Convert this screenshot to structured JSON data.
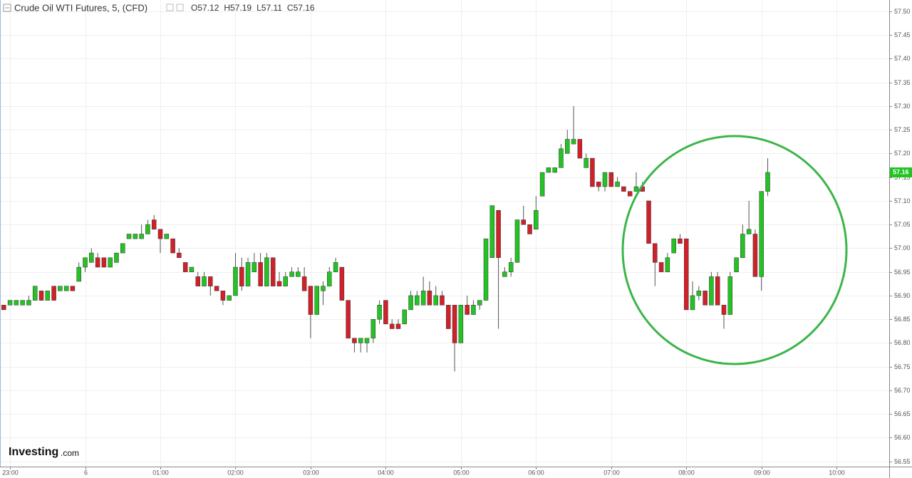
{
  "chart_data": {
    "type": "candlestick",
    "title": "Crude Oil WTI Futures, 5, (CFD)",
    "ohlc_header": [
      {
        "label": "O",
        "value": 57.12
      },
      {
        "label": "H",
        "value": 57.19
      },
      {
        "label": "L",
        "value": 57.11
      },
      {
        "label": "C",
        "value": 57.16
      }
    ],
    "last_price_label": 57.16,
    "logo": {
      "main": "Investing",
      "suffix": ".com"
    },
    "up_color": "#22c322",
    "down_color": "#d0202a",
    "x": [
      -5,
      0,
      5,
      10,
      15,
      20,
      25,
      30,
      35,
      40,
      45,
      50,
      55,
      60,
      65,
      70,
      75,
      80,
      85,
      90,
      95,
      100,
      105,
      110,
      115,
      120,
      125,
      130,
      135,
      140,
      145,
      150,
      155,
      160,
      165,
      170,
      175,
      180,
      185,
      190,
      195,
      200,
      205,
      210,
      215,
      220,
      225,
      230,
      235,
      240,
      245,
      250,
      255,
      260,
      265,
      270,
      275,
      280,
      285,
      290,
      295,
      300,
      305,
      310,
      315,
      320,
      325,
      330,
      335,
      340,
      345,
      350,
      355,
      360,
      365,
      370,
      375,
      380,
      385,
      390,
      395,
      400,
      405,
      410,
      415,
      420,
      425,
      430,
      435,
      440,
      445,
      450,
      455,
      460,
      465,
      470,
      475,
      480,
      485,
      490,
      495,
      500,
      505,
      510,
      515,
      520,
      525,
      530,
      535,
      540,
      545,
      550,
      555,
      560,
      565,
      570,
      575,
      580,
      585,
      590,
      595,
      600,
      605
    ],
    "open": [
      56.88,
      56.88,
      56.88,
      56.88,
      56.88,
      56.89,
      56.91,
      56.89,
      56.92,
      56.91,
      56.91,
      56.92,
      56.93,
      56.96,
      56.97,
      56.98,
      56.98,
      56.96,
      56.97,
      56.99,
      57.02,
      57.02,
      57.02,
      57.03,
      57.06,
      57.04,
      57.02,
      57.02,
      56.99,
      56.97,
      56.95,
      56.94,
      56.92,
      56.94,
      56.92,
      56.91,
      56.89,
      56.9,
      56.96,
      56.92,
      56.95,
      56.97,
      56.92,
      56.98,
      56.93,
      56.92,
      56.94,
      56.94,
      56.94,
      56.92,
      56.86,
      56.91,
      56.92,
      56.95,
      56.96,
      56.89,
      56.81,
      56.8,
      56.8,
      56.81,
      56.85,
      56.89,
      56.84,
      56.84,
      56.84,
      56.87,
      56.88,
      56.88,
      56.91,
      56.88,
      56.9,
      56.88,
      56.88,
      56.8,
      56.88,
      56.86,
      56.88,
      56.89,
      56.98,
      57.08,
      56.94,
      56.95,
      56.97,
      57.06,
      57.05,
      57.04,
      57.11,
      57.16,
      57.16,
      57.17,
      57.2,
      57.22,
      57.23,
      57.17,
      57.19,
      57.14,
      57.13,
      57.16,
      57.13,
      57.13,
      57.12,
      57.12,
      57.13,
      57.1,
      57.01,
      56.97,
      56.95,
      56.99,
      57.02,
      57.02,
      56.87,
      56.9,
      56.91,
      56.88,
      56.94,
      56.88,
      56.86,
      56.95,
      56.98,
      57.03,
      57.03,
      56.94,
      57.12
    ],
    "high": [
      56.88,
      56.89,
      56.89,
      56.89,
      56.9,
      56.92,
      56.91,
      56.91,
      56.92,
      56.92,
      56.92,
      56.92,
      56.97,
      56.98,
      57.0,
      56.99,
      56.98,
      56.98,
      56.99,
      57.01,
      57.03,
      57.03,
      57.05,
      57.06,
      57.07,
      57.04,
      57.03,
      57.02,
      57.0,
      56.97,
      56.96,
      56.95,
      56.95,
      56.94,
      56.92,
      56.91,
      56.9,
      56.99,
      56.98,
      56.98,
      56.99,
      56.99,
      56.99,
      56.98,
      56.95,
      56.95,
      56.96,
      56.96,
      56.96,
      56.92,
      56.92,
      56.93,
      56.96,
      56.98,
      56.96,
      56.89,
      56.81,
      56.81,
      56.81,
      56.85,
      56.89,
      56.89,
      56.85,
      56.85,
      56.87,
      56.91,
      56.91,
      56.94,
      56.93,
      56.92,
      56.91,
      56.88,
      56.88,
      56.88,
      56.9,
      56.89,
      56.89,
      57.02,
      57.09,
      57.08,
      56.96,
      56.98,
      57.06,
      57.09,
      57.05,
      57.11,
      57.16,
      57.17,
      57.17,
      57.22,
      57.25,
      57.3,
      57.23,
      57.2,
      57.19,
      57.14,
      57.16,
      57.16,
      57.15,
      57.13,
      57.12,
      57.16,
      57.14,
      57.1,
      57.01,
      56.97,
      56.99,
      57.02,
      57.03,
      57.02,
      56.93,
      56.92,
      56.91,
      56.95,
      56.95,
      56.88,
      56.95,
      56.98,
      57.05,
      57.1,
      57.04,
      57.12,
      57.19
    ],
    "low": [
      56.87,
      56.88,
      56.88,
      56.88,
      56.88,
      56.89,
      56.89,
      56.89,
      56.89,
      56.91,
      56.91,
      56.91,
      56.93,
      56.95,
      56.97,
      56.96,
      56.96,
      56.96,
      56.97,
      56.99,
      57.02,
      57.02,
      57.02,
      57.03,
      57.04,
      56.99,
      57.02,
      56.99,
      56.98,
      56.95,
      56.95,
      56.92,
      56.92,
      56.9,
      56.91,
      56.88,
      56.89,
      56.9,
      56.91,
      56.92,
      56.95,
      56.92,
      56.92,
      56.92,
      56.92,
      56.92,
      56.94,
      56.94,
      56.91,
      56.81,
      56.86,
      56.88,
      56.92,
      56.95,
      56.89,
      56.81,
      56.78,
      56.78,
      56.78,
      56.8,
      56.84,
      56.84,
      56.83,
      56.83,
      56.84,
      56.87,
      56.88,
      56.88,
      56.88,
      56.88,
      56.88,
      56.83,
      56.74,
      56.8,
      56.86,
      56.86,
      56.87,
      56.89,
      56.98,
      56.83,
      56.94,
      56.94,
      56.97,
      57.05,
      57.03,
      57.04,
      57.11,
      57.16,
      57.16,
      57.17,
      57.2,
      57.22,
      57.19,
      57.17,
      57.13,
      57.12,
      57.12,
      57.13,
      57.13,
      57.12,
      57.11,
      57.12,
      57.12,
      57.01,
      56.92,
      56.95,
      56.95,
      56.99,
      57.01,
      56.87,
      56.87,
      56.89,
      56.88,
      56.88,
      56.88,
      56.83,
      56.86,
      56.95,
      56.98,
      57.03,
      56.94,
      56.91,
      57.11
    ],
    "close": [
      56.87,
      56.89,
      56.89,
      56.89,
      56.89,
      56.92,
      56.89,
      56.91,
      56.89,
      56.92,
      56.92,
      56.91,
      56.96,
      56.98,
      56.99,
      56.96,
      56.96,
      56.98,
      56.99,
      57.01,
      57.03,
      57.03,
      57.03,
      57.05,
      57.04,
      57.02,
      57.03,
      56.99,
      56.98,
      56.95,
      56.96,
      56.92,
      56.94,
      56.92,
      56.91,
      56.89,
      56.9,
      56.96,
      56.92,
      56.97,
      56.97,
      56.92,
      56.98,
      56.92,
      56.92,
      56.94,
      56.95,
      56.95,
      56.91,
      56.86,
      56.92,
      56.92,
      56.95,
      56.97,
      56.89,
      56.81,
      56.8,
      56.81,
      56.81,
      56.85,
      56.88,
      56.84,
      56.83,
      56.83,
      56.87,
      56.9,
      56.9,
      56.91,
      56.88,
      56.9,
      56.88,
      56.83,
      56.8,
      56.88,
      56.86,
      56.88,
      56.89,
      57.02,
      57.09,
      56.98,
      56.95,
      56.97,
      57.06,
      57.05,
      57.03,
      57.08,
      57.16,
      57.17,
      57.17,
      57.21,
      57.23,
      57.23,
      57.19,
      57.19,
      57.13,
      57.13,
      57.16,
      57.13,
      57.14,
      57.12,
      57.11,
      57.13,
      57.12,
      57.01,
      56.97,
      56.95,
      56.98,
      57.02,
      57.01,
      56.87,
      56.9,
      56.91,
      56.88,
      56.94,
      56.88,
      56.86,
      56.94,
      56.98,
      57.03,
      57.04,
      56.94,
      57.12,
      57.16
    ],
    "xlim": [
      -8,
      702
    ],
    "ylim": [
      56.539,
      57.524
    ],
    "xticks": [
      {
        "value": 0,
        "label": "23:00"
      },
      {
        "value": 60,
        "label": "6"
      },
      {
        "value": 120,
        "label": "01:00"
      },
      {
        "value": 180,
        "label": "02:00"
      },
      {
        "value": 240,
        "label": "03:00"
      },
      {
        "value": 300,
        "label": "04:00"
      },
      {
        "value": 360,
        "label": "05:00"
      },
      {
        "value": 420,
        "label": "06:00"
      },
      {
        "value": 480,
        "label": "07:00"
      },
      {
        "value": 540,
        "label": "08:00"
      },
      {
        "value": 600,
        "label": "09:00"
      },
      {
        "value": 660,
        "label": "10:00"
      }
    ],
    "yticks": [
      {
        "value": 57.5,
        "label": "57.50"
      },
      57.45,
      {
        "value": 57.4,
        "label": "57.40"
      },
      57.35,
      {
        "value": 57.3,
        "label": "57.30"
      },
      57.25,
      {
        "value": 57.2,
        "label": "57.20"
      },
      57.15,
      {
        "value": 57.1,
        "label": "57.10"
      },
      57.05,
      {
        "value": 57.0,
        "label": "57.00"
      },
      56.95,
      {
        "value": 56.9,
        "label": "56.90"
      },
      56.85,
      {
        "value": 56.8,
        "label": "56.80"
      },
      56.75,
      {
        "value": 56.7,
        "label": "56.70"
      },
      56.65,
      {
        "value": 56.6,
        "label": "56.60"
      },
      56.55
    ],
    "grid": true
  }
}
